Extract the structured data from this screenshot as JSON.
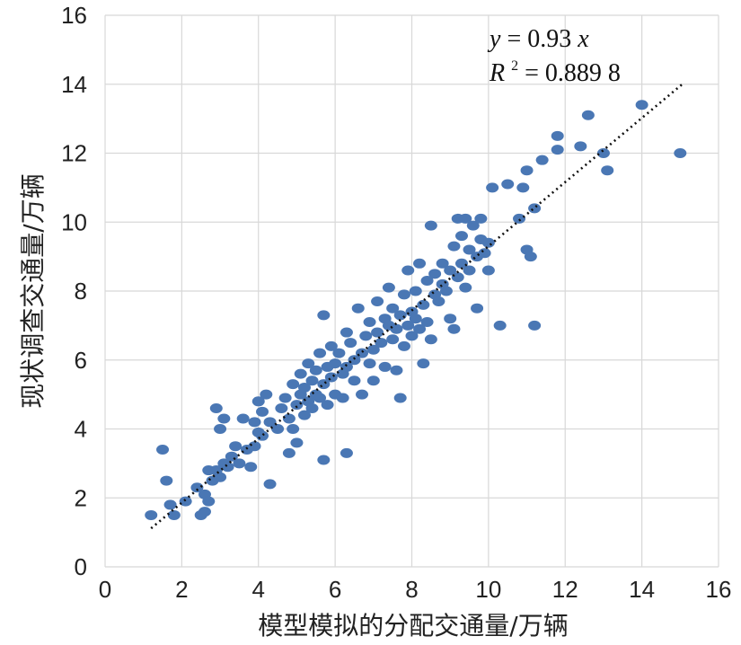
{
  "chart_data": {
    "type": "scatter",
    "xlabel": "模型模拟的分配交通量/万辆",
    "ylabel": "现状调查交通量/万辆",
    "xlim": [
      0,
      16
    ],
    "ylim": [
      0,
      16
    ],
    "xticks": [
      "0",
      "2",
      "4",
      "6",
      "8",
      "10",
      "12",
      "14",
      "16"
    ],
    "yticks": [
      "0",
      "2",
      "4",
      "6",
      "8",
      "10",
      "12",
      "14",
      "16"
    ],
    "grid": true,
    "annotation": {
      "equation_lhs": "y",
      "equation_rhs": "0.93",
      "equation_var": "x",
      "r2_lhs": "R",
      "r2_sup": "2",
      "r2_rhs": "0.889 8"
    },
    "trendline": {
      "slope": 0.93,
      "x_range": [
        1.2,
        15.1
      ],
      "style": "dotted"
    },
    "series": [
      {
        "color": "#4a77b4",
        "points": [
          [
            1.2,
            1.5
          ],
          [
            1.5,
            3.4
          ],
          [
            1.6,
            2.5
          ],
          [
            1.7,
            1.8
          ],
          [
            1.8,
            1.5
          ],
          [
            2.1,
            1.9
          ],
          [
            2.4,
            2.3
          ],
          [
            2.5,
            1.5
          ],
          [
            2.6,
            1.6
          ],
          [
            2.6,
            2.1
          ],
          [
            2.7,
            2.8
          ],
          [
            2.7,
            1.9
          ],
          [
            2.8,
            2.5
          ],
          [
            2.9,
            2.8
          ],
          [
            2.9,
            4.6
          ],
          [
            3.0,
            4.0
          ],
          [
            3.0,
            2.6
          ],
          [
            3.1,
            3.0
          ],
          [
            3.1,
            4.3
          ],
          [
            3.2,
            2.9
          ],
          [
            3.3,
            3.2
          ],
          [
            3.4,
            3.5
          ],
          [
            3.5,
            3.0
          ],
          [
            3.6,
            4.3
          ],
          [
            3.7,
            3.4
          ],
          [
            3.8,
            2.9
          ],
          [
            3.9,
            3.5
          ],
          [
            3.9,
            4.2
          ],
          [
            4.0,
            3.9
          ],
          [
            4.0,
            4.8
          ],
          [
            4.1,
            4.5
          ],
          [
            4.1,
            3.8
          ],
          [
            4.2,
            5.0
          ],
          [
            4.3,
            4.2
          ],
          [
            4.3,
            2.4
          ],
          [
            4.5,
            4.0
          ],
          [
            4.6,
            4.6
          ],
          [
            4.7,
            4.9
          ],
          [
            4.8,
            4.3
          ],
          [
            4.8,
            3.3
          ],
          [
            4.9,
            4.0
          ],
          [
            4.9,
            5.3
          ],
          [
            5.0,
            3.6
          ],
          [
            5.0,
            4.7
          ],
          [
            5.1,
            5.0
          ],
          [
            5.1,
            5.6
          ],
          [
            5.2,
            4.4
          ],
          [
            5.2,
            5.2
          ],
          [
            5.3,
            4.8
          ],
          [
            5.3,
            5.9
          ],
          [
            5.4,
            5.4
          ],
          [
            5.4,
            4.6
          ],
          [
            5.5,
            5.0
          ],
          [
            5.5,
            5.7
          ],
          [
            5.6,
            6.2
          ],
          [
            5.6,
            4.9
          ],
          [
            5.7,
            5.3
          ],
          [
            5.7,
            3.1
          ],
          [
            5.7,
            7.3
          ],
          [
            5.8,
            5.8
          ],
          [
            5.8,
            4.7
          ],
          [
            5.9,
            6.4
          ],
          [
            5.9,
            5.5
          ],
          [
            6.0,
            5.9
          ],
          [
            6.0,
            5.0
          ],
          [
            6.1,
            6.2
          ],
          [
            6.2,
            5.6
          ],
          [
            6.2,
            4.9
          ],
          [
            6.3,
            6.8
          ],
          [
            6.3,
            5.8
          ],
          [
            6.3,
            3.3
          ],
          [
            6.4,
            6.5
          ],
          [
            6.5,
            5.4
          ],
          [
            6.5,
            6.0
          ],
          [
            6.6,
            7.5
          ],
          [
            6.7,
            6.2
          ],
          [
            6.7,
            5.0
          ],
          [
            6.8,
            6.7
          ],
          [
            6.9,
            5.9
          ],
          [
            6.9,
            7.1
          ],
          [
            7.0,
            6.3
          ],
          [
            7.0,
            5.4
          ],
          [
            7.1,
            6.8
          ],
          [
            7.1,
            7.7
          ],
          [
            7.2,
            6.5
          ],
          [
            7.3,
            7.2
          ],
          [
            7.3,
            5.8
          ],
          [
            7.4,
            7.0
          ],
          [
            7.4,
            8.1
          ],
          [
            7.5,
            6.6
          ],
          [
            7.5,
            7.5
          ],
          [
            7.6,
            6.9
          ],
          [
            7.6,
            5.7
          ],
          [
            7.7,
            7.3
          ],
          [
            7.7,
            4.9
          ],
          [
            7.8,
            7.9
          ],
          [
            7.8,
            6.4
          ],
          [
            7.9,
            7.0
          ],
          [
            7.9,
            8.6
          ],
          [
            8.0,
            7.4
          ],
          [
            8.0,
            6.7
          ],
          [
            8.1,
            8.0
          ],
          [
            8.1,
            7.2
          ],
          [
            8.2,
            6.9
          ],
          [
            8.2,
            8.8
          ],
          [
            8.3,
            7.6
          ],
          [
            8.3,
            5.9
          ],
          [
            8.4,
            8.3
          ],
          [
            8.4,
            7.1
          ],
          [
            8.5,
            9.9
          ],
          [
            8.5,
            6.6
          ],
          [
            8.6,
            7.9
          ],
          [
            8.6,
            8.5
          ],
          [
            8.7,
            7.7
          ],
          [
            8.8,
            8.2
          ],
          [
            8.8,
            8.8
          ],
          [
            8.9,
            8.0
          ],
          [
            9.0,
            8.6
          ],
          [
            9.0,
            7.2
          ],
          [
            9.1,
            9.3
          ],
          [
            9.1,
            6.9
          ],
          [
            9.2,
            8.4
          ],
          [
            9.2,
            10.1
          ],
          [
            9.3,
            8.8
          ],
          [
            9.3,
            9.6
          ],
          [
            9.4,
            8.1
          ],
          [
            9.4,
            10.1
          ],
          [
            9.5,
            9.2
          ],
          [
            9.5,
            8.6
          ],
          [
            9.6,
            9.9
          ],
          [
            9.7,
            9.0
          ],
          [
            9.7,
            7.5
          ],
          [
            9.8,
            9.5
          ],
          [
            9.8,
            10.1
          ],
          [
            9.9,
            9.1
          ],
          [
            10.0,
            9.4
          ],
          [
            10.0,
            8.6
          ],
          [
            10.1,
            11.0
          ],
          [
            10.3,
            7.0
          ],
          [
            10.5,
            11.1
          ],
          [
            10.8,
            10.1
          ],
          [
            10.9,
            11.0
          ],
          [
            11.0,
            9.2
          ],
          [
            11.0,
            11.5
          ],
          [
            11.1,
            9.0
          ],
          [
            11.2,
            10.4
          ],
          [
            11.2,
            7.0
          ],
          [
            11.4,
            11.8
          ],
          [
            11.8,
            12.1
          ],
          [
            11.8,
            12.5
          ],
          [
            12.4,
            12.2
          ],
          [
            12.6,
            13.1
          ],
          [
            13.0,
            12.0
          ],
          [
            13.1,
            11.5
          ],
          [
            14.0,
            13.4
          ],
          [
            15.0,
            12.0
          ]
        ]
      }
    ]
  }
}
